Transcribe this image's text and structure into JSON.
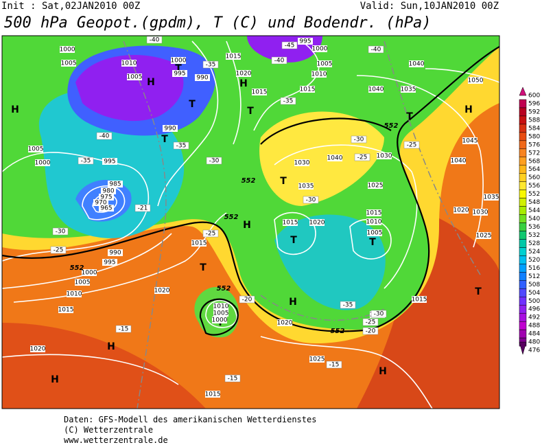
{
  "header": {
    "init": "Init : Sat,02JAN2010 00Z",
    "valid": "Valid: Sun,10JAN2010 00Z",
    "title": "500 hPa Geopot.(gpdm), T (C) und Bodendr. (hPa)"
  },
  "legend": {
    "levels": [
      600,
      596,
      592,
      588,
      584,
      580,
      576,
      572,
      568,
      564,
      560,
      556,
      552,
      548,
      544,
      540,
      536,
      532,
      528,
      524,
      520,
      516,
      512,
      508,
      504,
      500,
      496,
      492,
      488,
      484,
      480,
      476
    ],
    "colors": [
      "#d0107a",
      "#c00050",
      "#b80020",
      "#c81010",
      "#d83010",
      "#e84c10",
      "#f06818",
      "#f88420",
      "#ffa020",
      "#ffb818",
      "#ffd020",
      "#ffe830",
      "#f8f800",
      "#d0f000",
      "#a8ec00",
      "#70e020",
      "#38d040",
      "#10c870",
      "#00c8a8",
      "#00d0d0",
      "#00c0f0",
      "#00a0ff",
      "#1080ff",
      "#3060ff",
      "#5048ff",
      "#7030ff",
      "#9020f0",
      "#a810e0",
      "#c000d0",
      "#a000b0",
      "#800090",
      "#580060"
    ]
  },
  "map": {
    "pressure_centers": [
      "H",
      "H",
      "H",
      "H",
      "H",
      "H",
      "H",
      "H",
      "H",
      "T",
      "T",
      "T",
      "T",
      "T",
      "T",
      "T",
      "T",
      "T",
      "T",
      "T"
    ],
    "isobar_labels": [
      "1000",
      "1005",
      "1010",
      "1005",
      "1000",
      "995",
      "990",
      "1015",
      "1020",
      "1015",
      "995",
      "1000",
      "1005",
      "1010",
      "1015",
      "1040",
      "1040",
      "1035",
      "1050",
      "1045",
      "1040",
      "1035",
      "1030",
      "1025",
      "1020",
      "990",
      "1005",
      "1000",
      "995",
      "985",
      "980",
      "975",
      "970",
      "965",
      "990",
      "995",
      "1000",
      "1005",
      "1010",
      "1015",
      "1020",
      "1015",
      "1010",
      "1005",
      "1000",
      "1020",
      "1020",
      "1025",
      "1015",
      "1030",
      "1040",
      "1030",
      "1025",
      "1035",
      "1015",
      "1010",
      "1015",
      "1020",
      "1005",
      "1015",
      "1030"
    ],
    "temperature_labels": [
      "-40",
      "-45",
      "-40",
      "-40",
      "-35",
      "-35",
      "-40",
      "-35",
      "-35",
      "-30",
      "-30",
      "-25",
      "-25",
      "-30",
      "-25",
      "-30",
      "-25",
      "-21",
      "-20",
      "-35",
      "-30",
      "-25",
      "-20",
      "-15",
      "-15",
      "-15"
    ],
    "height_labels": [
      "552",
      "552",
      "552",
      "552",
      "552",
      "552"
    ]
  },
  "footer": {
    "lines": [
      "Daten: GFS-Modell des amerikanischen Wetterdienstes",
      "(C) Wetterzentrale",
      "www.wetterzentrale.de"
    ]
  }
}
